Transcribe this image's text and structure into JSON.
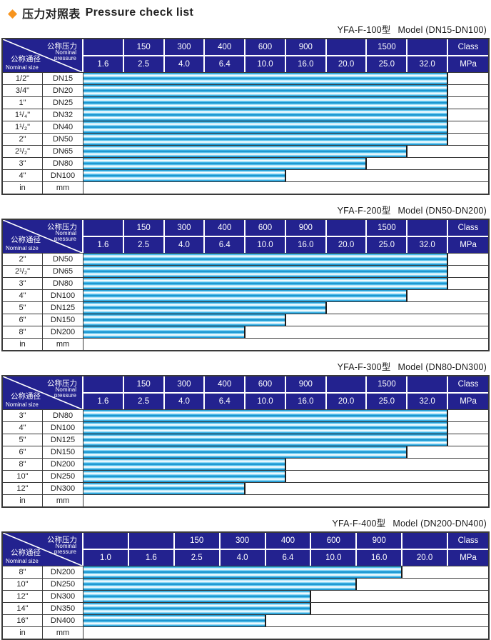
{
  "page": {
    "diamond_icon": "◆",
    "title_zh": "压力对照表",
    "title_en": "Pressure check list",
    "colors": {
      "header_navy": "#23228F",
      "bar_cyan": "#29ABE2",
      "bar_dark_edge": "#0C85C4",
      "accent_orange": "#F7941E",
      "border_dark": "#3A3A3A"
    }
  },
  "corner": {
    "pressure_zh": "公称压力",
    "pressure_en_line1": "Nominal",
    "pressure_en_line2": "pressure",
    "size_zh": "公称通径",
    "size_en": "Nominal size"
  },
  "tables": [
    {
      "model": "YFA-F-100型",
      "range": "Model (DN15-DN100)",
      "class_cells": [
        "",
        "150",
        "300",
        "400",
        "600",
        "900",
        "",
        "1500",
        ""
      ],
      "class_label": "Class",
      "mpa_cells": [
        "1.6",
        "2.5",
        "4.0",
        "6.4",
        "10.0",
        "16.0",
        "20.0",
        "25.0",
        "32.0"
      ],
      "mpa_label": "MPa",
      "rows": [
        {
          "inch": "1/2\"",
          "dn": "DN15",
          "bar_cols": 9
        },
        {
          "inch": "3/4\"",
          "dn": "DN20",
          "bar_cols": 9
        },
        {
          "inch": "1\"",
          "dn": "DN25",
          "bar_cols": 9
        },
        {
          "inch": "1¹/₄\"",
          "dn": "DN32",
          "bar_cols": 9
        },
        {
          "inch": "1¹/₂\"",
          "dn": "DN40",
          "bar_cols": 9
        },
        {
          "inch": "2\"",
          "dn": "DN50",
          "bar_cols": 9
        },
        {
          "inch": "2¹/₂\"",
          "dn": "DN65",
          "bar_cols": 8
        },
        {
          "inch": "3\"",
          "dn": "DN80",
          "bar_cols": 7
        },
        {
          "inch": "4\"",
          "dn": "DN100",
          "bar_cols": 5
        }
      ],
      "unit_row": {
        "inch": "in",
        "mm": "mm"
      }
    },
    {
      "model": "YFA-F-200型",
      "range": "Model (DN50-DN200)",
      "class_cells": [
        "",
        "150",
        "300",
        "400",
        "600",
        "900",
        "",
        "1500",
        ""
      ],
      "class_label": "Class",
      "mpa_cells": [
        "1.6",
        "2.5",
        "4.0",
        "6.4",
        "10.0",
        "16.0",
        "20.0",
        "25.0",
        "32.0"
      ],
      "mpa_label": "MPa",
      "rows": [
        {
          "inch": "2\"",
          "dn": "DN50",
          "bar_cols": 9
        },
        {
          "inch": "2¹/₂\"",
          "dn": "DN65",
          "bar_cols": 9
        },
        {
          "inch": "3\"",
          "dn": "DN80",
          "bar_cols": 9
        },
        {
          "inch": "4\"",
          "dn": "DN100",
          "bar_cols": 8
        },
        {
          "inch": "5\"",
          "dn": "DN125",
          "bar_cols": 6
        },
        {
          "inch": "6\"",
          "dn": "DN150",
          "bar_cols": 5
        },
        {
          "inch": "8\"",
          "dn": "DN200",
          "bar_cols": 4
        }
      ],
      "unit_row": {
        "inch": "in",
        "mm": "mm"
      }
    },
    {
      "model": "YFA-F-300型",
      "range": "Model (DN80-DN300)",
      "class_cells": [
        "",
        "150",
        "300",
        "400",
        "600",
        "900",
        "",
        "1500",
        ""
      ],
      "class_label": "Class",
      "mpa_cells": [
        "1.6",
        "2.5",
        "4.0",
        "6.4",
        "10.0",
        "16.0",
        "20.0",
        "25.0",
        "32.0"
      ],
      "mpa_label": "MPa",
      "rows": [
        {
          "inch": "3\"",
          "dn": "DN80",
          "bar_cols": 9
        },
        {
          "inch": "4\"",
          "dn": "DN100",
          "bar_cols": 9
        },
        {
          "inch": "5\"",
          "dn": "DN125",
          "bar_cols": 9
        },
        {
          "inch": "6\"",
          "dn": "DN150",
          "bar_cols": 8
        },
        {
          "inch": "8\"",
          "dn": "DN200",
          "bar_cols": 5
        },
        {
          "inch": "10\"",
          "dn": "DN250",
          "bar_cols": 5
        },
        {
          "inch": "12\"",
          "dn": "DN300",
          "bar_cols": 4
        }
      ],
      "unit_row": {
        "inch": "in",
        "mm": "mm"
      }
    },
    {
      "model": "YFA-F-400型",
      "range": "Model (DN200-DN400)",
      "class_cells": [
        "",
        "",
        "150",
        "300",
        "400",
        "600",
        "900",
        ""
      ],
      "class_label": "Class",
      "mpa_cells": [
        "1.0",
        "1.6",
        "2.5",
        "4.0",
        "6.4",
        "10.0",
        "16.0",
        "20.0"
      ],
      "mpa_label": "MPa",
      "rows": [
        {
          "inch": "8\"",
          "dn": "DN200",
          "bar_cols": 7
        },
        {
          "inch": "10\"",
          "dn": "DN250",
          "bar_cols": 6
        },
        {
          "inch": "12\"",
          "dn": "DN300",
          "bar_cols": 5
        },
        {
          "inch": "14\"",
          "dn": "DN350",
          "bar_cols": 5
        },
        {
          "inch": "16\"",
          "dn": "DN400",
          "bar_cols": 4
        }
      ],
      "unit_row": {
        "inch": "in",
        "mm": "mm"
      }
    }
  ]
}
